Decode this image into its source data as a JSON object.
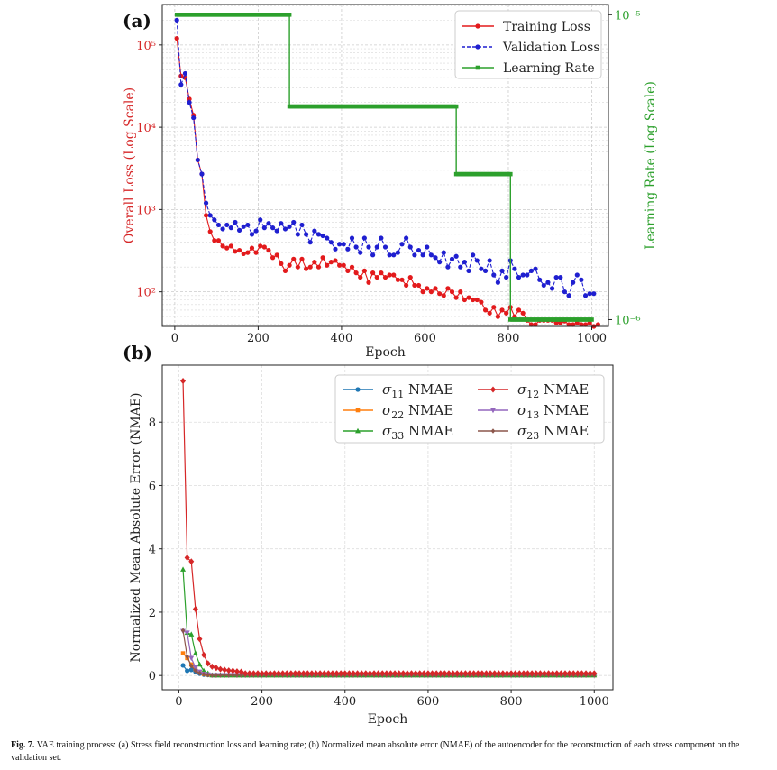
{
  "chart_data": [
    {
      "type": "line",
      "panel_label": "(a)",
      "xlabel": "Epoch",
      "ylabel": "Overall Loss (Log Scale)",
      "y2label": "Learning Rate (Log Scale)",
      "xlim": [
        -30,
        1040
      ],
      "ylim_log": [
        38,
        310000
      ],
      "y2lim_log": [
        9.5e-07,
        1.08e-05
      ],
      "xticks": [
        0,
        200,
        400,
        600,
        800,
        1000
      ],
      "yticks": [
        {
          "v": 100,
          "label": "10²"
        },
        {
          "v": 1000,
          "label": "10³"
        },
        {
          "v": 10000,
          "label": "10⁴"
        },
        {
          "v": 100000,
          "label": "10⁵"
        }
      ],
      "y2ticks": [
        {
          "v": 1e-06,
          "label": "10⁻⁶"
        },
        {
          "v": 1e-05,
          "label": "10⁻⁵"
        }
      ],
      "legend": [
        "Training Loss",
        "Validation Loss",
        "Learning Rate"
      ],
      "series": [
        {
          "name": "Training Loss",
          "color": "#e31a1c",
          "marker": "circle",
          "x_start": 5,
          "x_step": 10,
          "values": [
            120000,
            42000,
            40000,
            22000,
            14000,
            4000,
            2700,
            850,
            540,
            420,
            420,
            360,
            340,
            360,
            310,
            320,
            290,
            300,
            340,
            300,
            360,
            350,
            320,
            260,
            280,
            220,
            180,
            210,
            250,
            200,
            250,
            190,
            200,
            230,
            200,
            260,
            210,
            230,
            240,
            210,
            210,
            180,
            200,
            170,
            150,
            180,
            130,
            170,
            150,
            170,
            150,
            160,
            160,
            140,
            140,
            120,
            150,
            120,
            120,
            100,
            110,
            100,
            110,
            95,
            90,
            110,
            100,
            85,
            100,
            80,
            85,
            80,
            80,
            75,
            60,
            55,
            65,
            50,
            60,
            55,
            65,
            50,
            60,
            55,
            45,
            40,
            40,
            45,
            45,
            45,
            45,
            42,
            42,
            44,
            40,
            40,
            42,
            40,
            40,
            42,
            38,
            40
          ]
        },
        {
          "name": "Validation Loss",
          "color": "#1f1fd0",
          "marker": "circle",
          "x_start": 5,
          "x_step": 10,
          "values": [
            200000,
            33000,
            45000,
            20000,
            13000,
            4000,
            2700,
            1200,
            850,
            750,
            650,
            580,
            650,
            600,
            700,
            560,
            620,
            650,
            500,
            550,
            750,
            600,
            680,
            600,
            550,
            680,
            580,
            620,
            700,
            500,
            650,
            500,
            400,
            550,
            500,
            480,
            450,
            400,
            330,
            380,
            380,
            330,
            450,
            350,
            300,
            450,
            350,
            280,
            350,
            450,
            350,
            280,
            280,
            300,
            380,
            450,
            350,
            280,
            320,
            280,
            350,
            280,
            260,
            230,
            300,
            200,
            250,
            270,
            200,
            230,
            180,
            280,
            240,
            190,
            180,
            240,
            160,
            130,
            180,
            150,
            240,
            190,
            150,
            160,
            160,
            180,
            190,
            140,
            120,
            130,
            110,
            150,
            150,
            100,
            90,
            130,
            160,
            140,
            90,
            95,
            95
          ]
        },
        {
          "name": "Learning Rate",
          "color": "#2ca02c",
          "marker": "square",
          "axis": "right",
          "steps": [
            {
              "x0": 5,
              "x1": 275,
              "v": 1e-05
            },
            {
              "x0": 275,
              "x1": 675,
              "v": 5e-06
            },
            {
              "x0": 675,
              "x1": 805,
              "v": 3e-06
            },
            {
              "x0": 805,
              "x1": 1000,
              "v": 1e-06
            }
          ]
        }
      ]
    },
    {
      "type": "line",
      "panel_label": "(b)",
      "xlabel": "Epoch",
      "ylabel": "Normalized Mean Absolute Error (NMAE)",
      "xlim": [
        -40,
        1045
      ],
      "ylim": [
        -0.45,
        9.8
      ],
      "xticks": [
        0,
        200,
        400,
        600,
        800,
        1000
      ],
      "yticks": [
        0,
        2,
        4,
        6,
        8
      ],
      "series": [
        {
          "name": "σ11 NMAE",
          "sub": "11",
          "color": "#1f77b4",
          "marker": "circle",
          "peaks": [
            0.32,
            0.15,
            0.18,
            0.12,
            0.06,
            0.03,
            0.02
          ],
          "tail": 0.01
        },
        {
          "name": "σ12 NMAE",
          "sub": "12",
          "color": "#d62728",
          "marker": "diamond",
          "peaks": [
            9.3,
            3.72,
            3.6,
            2.1,
            1.15,
            0.65,
            0.38,
            0.28,
            0.24,
            0.2,
            0.18,
            0.16,
            0.15,
            0.13,
            0.12
          ],
          "tail": 0.07
        },
        {
          "name": "σ22 NMAE",
          "sub": "22",
          "color": "#ff7f0e",
          "marker": "square",
          "peaks": [
            0.7,
            0.55,
            0.35,
            0.2,
            0.1,
            0.05,
            0.03
          ],
          "tail": 0.01
        },
        {
          "name": "σ13 NMAE",
          "sub": "13",
          "color": "#9467bd",
          "marker": "triangle-down",
          "peaks": [
            1.4,
            1.35,
            0.55,
            0.25,
            0.12,
            0.05,
            0.03
          ],
          "tail": 0.01
        },
        {
          "name": "σ33 NMAE",
          "sub": "33",
          "color": "#2ca02c",
          "marker": "triangle-up",
          "peaks": [
            3.35,
            1.35,
            1.3,
            0.7,
            0.35,
            0.15,
            0.07
          ],
          "tail": 0.01
        },
        {
          "name": "σ23 NMAE",
          "sub": "23",
          "color": "#8c564b",
          "marker": "diamond-small",
          "peaks": [
            1.42,
            0.6,
            0.3,
            0.15,
            0.07,
            0.04,
            0.02
          ],
          "tail": 0.01
        }
      ],
      "x_start": 10,
      "x_step": 10
    }
  ],
  "caption": {
    "label": "Fig. 7.",
    "text": "VAE training process: (a) Stress field reconstruction loss and learning rate; (b) Normalized mean absolute error (NMAE) of the autoencoder for the reconstruction of each stress component on the validation set."
  }
}
